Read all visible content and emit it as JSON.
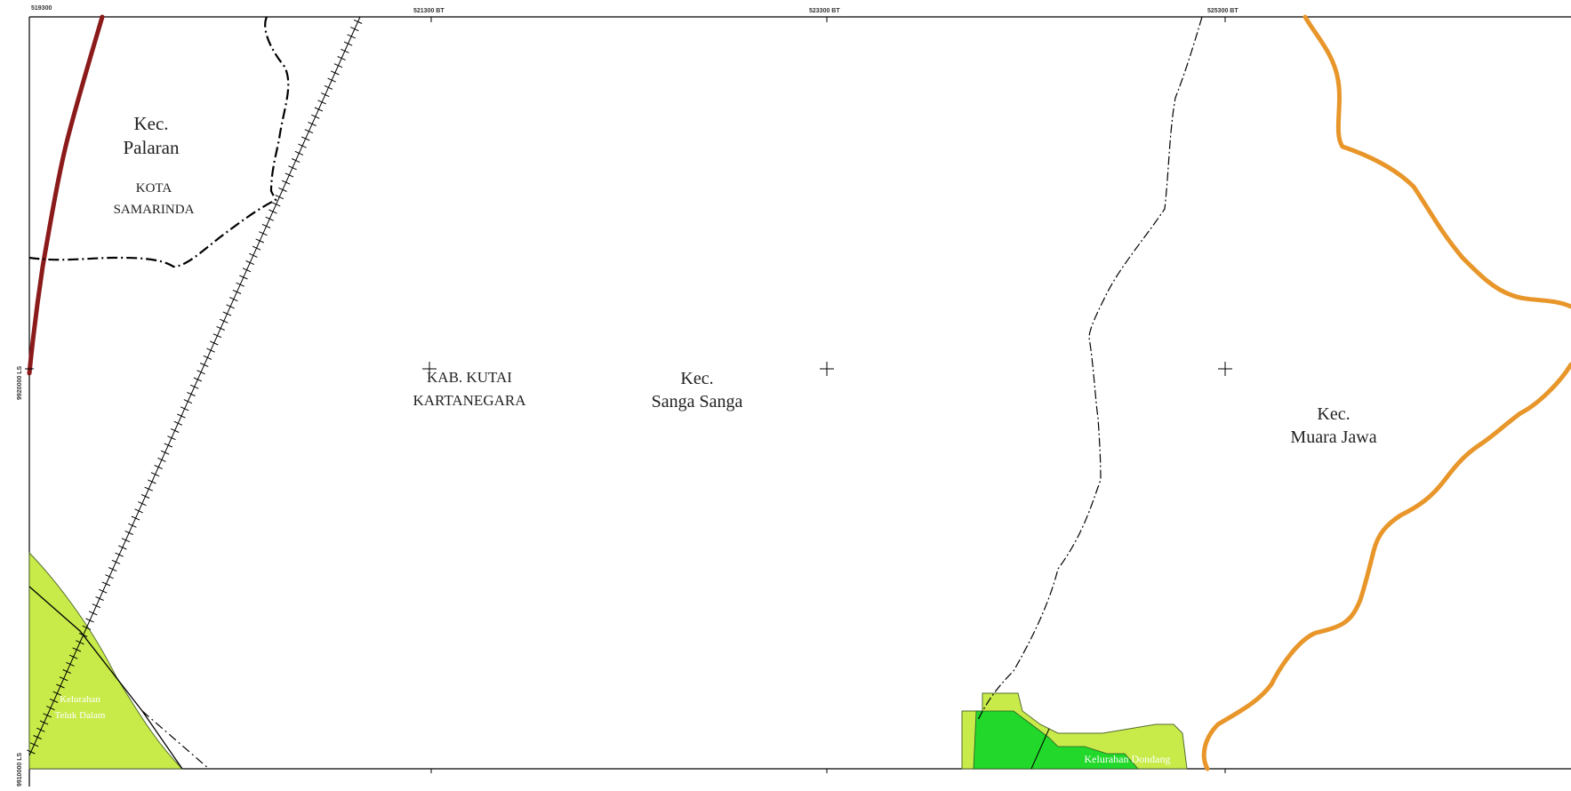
{
  "map": {
    "grid_labels": {
      "x": [
        "519300",
        "521300 BT",
        "523300 BT",
        "525300 BT"
      ],
      "y": [
        "9920000 LS",
        "9910000 LS"
      ]
    },
    "labels": {
      "kec_palaran": [
        "Kec.",
        "Palaran"
      ],
      "kota_samarinda": [
        "KOTA",
        "SAMARINDA"
      ],
      "kab_kutai": [
        "KAB. KUTAI",
        "KARTANEGARA"
      ],
      "kec_sanga_sanga": [
        "Kec.",
        "Sanga Sanga"
      ],
      "kec_muara_jawa": [
        "Kec.",
        "Muara Jawa"
      ],
      "kel_teluk_dalam": [
        "Kelurahan",
        "Teluk Dalam"
      ],
      "kel_dondang": "Kelurahan Dondang"
    },
    "colors": {
      "red_road": "#8b1a1a",
      "orange_boundary": "#e8962a",
      "lime_area": "#c8eb4a",
      "green_area": "#22d82a",
      "frame": "#000000"
    }
  }
}
